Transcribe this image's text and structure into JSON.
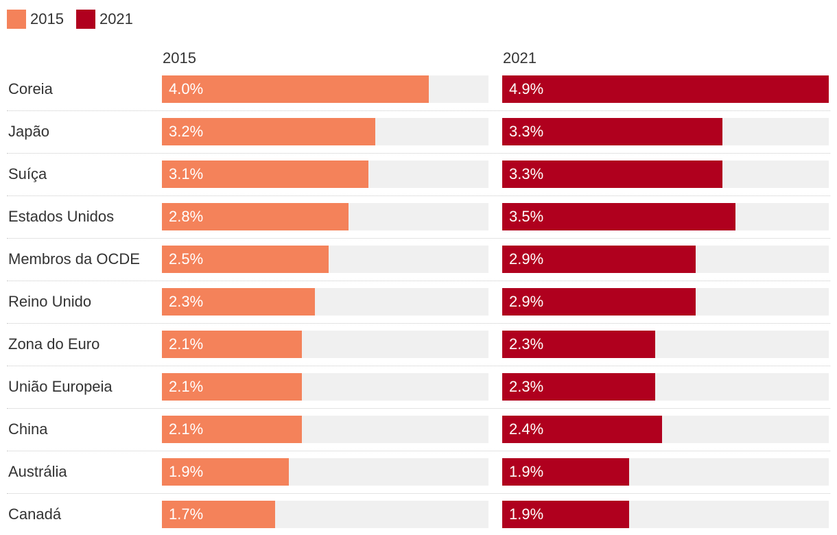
{
  "chart_data": {
    "type": "bar",
    "orientation": "horizontal",
    "layout": "small-multiples",
    "categories": [
      "Coreia",
      "Japão",
      "Suíça",
      "Estados Unidos",
      "Membros da OCDE",
      "Reino Unido",
      "Zona do Euro",
      "União Europeia",
      "China",
      "Austrália",
      "Canadá"
    ],
    "series": [
      {
        "name": "2015",
        "header": "2015",
        "color": "#f4825a",
        "values": [
          4.0,
          3.2,
          3.1,
          2.8,
          2.5,
          2.3,
          2.1,
          2.1,
          2.1,
          1.9,
          1.7
        ],
        "labels": [
          "4.0%",
          "3.2%",
          "3.1%",
          "2.8%",
          "2.5%",
          "2.3%",
          "2.1%",
          "2.1%",
          "2.1%",
          "1.9%",
          "1.7%"
        ]
      },
      {
        "name": "2021",
        "header": "2021",
        "color": "#b0001e",
        "values": [
          4.9,
          3.3,
          3.3,
          3.5,
          2.9,
          2.9,
          2.3,
          2.3,
          2.4,
          1.9,
          1.9
        ],
        "labels": [
          "4.9%",
          "3.3%",
          "3.3%",
          "3.5%",
          "2.9%",
          "2.9%",
          "2.3%",
          "2.3%",
          "2.4%",
          "1.9%",
          "1.9%"
        ]
      }
    ],
    "xlim": [
      0,
      4.9
    ],
    "legend": [
      "2015",
      "2021"
    ],
    "legend_position": "top-left",
    "track_color": "#f0f0f0",
    "title": "",
    "xlabel": "",
    "ylabel": ""
  }
}
